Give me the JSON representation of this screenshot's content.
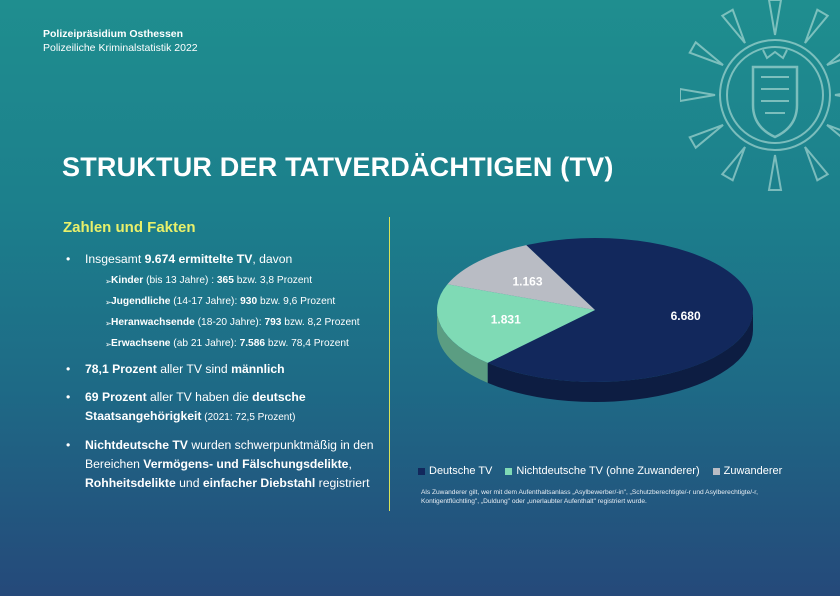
{
  "header": {
    "org": "Polizeipräsidium Osthessen",
    "subtitle": "Polizeiliche Kriminalstatistik 2022"
  },
  "title": "STRUKTUR DER TATVERDÄCHTIGEN (TV)",
  "facts": {
    "heading": "Zahlen und Fakten",
    "b1": {
      "p1": "Insgesamt ",
      "p2": "9.674 ermittelte TV",
      "p3": ", davon"
    },
    "sub": [
      {
        "b": "Kinder",
        "n": " (bis 13 Jahre) : ",
        "v": "365",
        "r": " bzw. 3,8 Prozent"
      },
      {
        "b": "Jugendliche",
        "n": " (14-17 Jahre): ",
        "v": "930",
        "r": " bzw. 9,6 Prozent"
      },
      {
        "b": "Heranwachsende",
        "n": " (18-20 Jahre): ",
        "v": "793",
        "r": " bzw. 8,2 Prozent"
      },
      {
        "b": "Erwachsene",
        "n": " (ab 21 Jahre): ",
        "v": "7.586",
        "r": " bzw. 78,4 Prozent"
      }
    ],
    "b2": {
      "p1": "78,1 Prozent",
      "p2": " aller TV sind ",
      "p3": "männlich"
    },
    "b3": {
      "p1": "69 Prozent",
      "p2": " aller TV haben die ",
      "p3": "deutsche Staatsangehörigkeit",
      "p4": " (2021: 72,5 Prozent)"
    },
    "b4": {
      "p1": "Nichtdeutsche TV",
      "p2": " wurden schwerpunktmäßig in den Bereichen ",
      "p3": "Vermögens- und Fälschungsdelikte",
      "p4": ", ",
      "p5": "Rohheitsdelikte",
      "p6": " und ",
      "p7": "einfacher Diebstahl",
      "p8": " registriert"
    }
  },
  "chart_data": {
    "type": "pie",
    "series": [
      {
        "name": "Deutsche TV",
        "value": 6680,
        "label": "6.680",
        "color": "#12285c"
      },
      {
        "name": "Nichtdeutsche TV (ohne Zuwanderer)",
        "value": 1831,
        "label": "1.831",
        "color": "#7fdab5"
      },
      {
        "name": "Zuwanderer",
        "value": 1163,
        "label": "1.163",
        "color": "#b9bcc4"
      }
    ],
    "legend_position": "bottom",
    "note": "Als Zuwanderer gilt, wer mit dem Aufenthaltsanlass „Asylbewerber/-in\", „Schutzberechtigte/-r und Asylberechtigte/-r, Kontigentflüchtling\", „Duldung\" oder „unerlaubter Aufenthalt\" registriert wurde."
  }
}
